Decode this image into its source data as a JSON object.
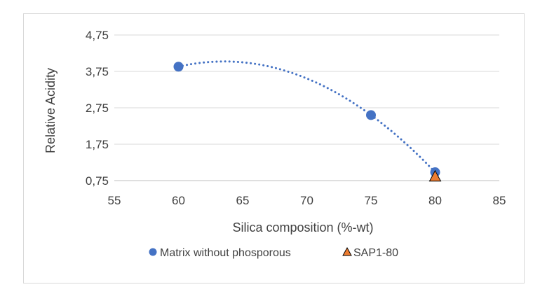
{
  "chart_data": {
    "type": "scatter",
    "xlabel": "Silica composition (%-wt)",
    "ylabel": "Relative Acidity",
    "xlim": [
      55,
      85
    ],
    "ylim": [
      0.75,
      4.75
    ],
    "x_ticks": [
      "55",
      "60",
      "65",
      "70",
      "75",
      "80",
      "85"
    ],
    "y_ticks": [
      "0,75",
      "1,75",
      "2,75",
      "3,75",
      "4,75"
    ],
    "grid": "horizontal",
    "legend_position": "bottom",
    "series": [
      {
        "name": "Matrix without phosporous",
        "marker": "circle",
        "color": "#4472C4",
        "trendline": "polynomial",
        "points": [
          {
            "x": 60,
            "y": 3.88
          },
          {
            "x": 75,
            "y": 2.55
          },
          {
            "x": 80,
            "y": 0.98
          }
        ]
      },
      {
        "name": "SAP1-80",
        "marker": "triangle",
        "color": "#ED7D31",
        "points": [
          {
            "x": 80,
            "y": 0.85
          }
        ]
      }
    ]
  }
}
